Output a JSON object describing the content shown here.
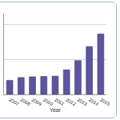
{
  "chart_data": {
    "type": "bar",
    "x_label": "Year",
    "categories": [
      "2007",
      "2008",
      "2009",
      "2010",
      "2011",
      "2012",
      "2013",
      "2014",
      "2015"
    ],
    "values": [
      20,
      24,
      25,
      25.5,
      26,
      35,
      48,
      68,
      86
    ],
    "color": "#5e55a0",
    "ylim": [
      0,
      115
    ],
    "yticks": [
      0,
      50,
      100
    ],
    "grid": true,
    "tick_labels": "x"
  }
}
